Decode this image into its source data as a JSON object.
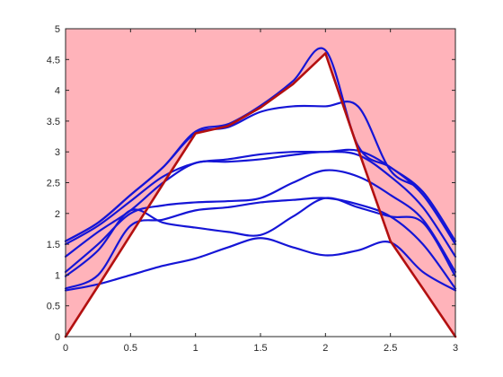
{
  "chart_data": {
    "type": "line",
    "title": "",
    "xlabel": "",
    "ylabel": "",
    "xlim": [
      0,
      3
    ],
    "ylim": [
      0,
      5
    ],
    "x_ticks": [
      0,
      0.5,
      1,
      1.5,
      2,
      2.5,
      3
    ],
    "x_tick_labels": [
      "0",
      "0.5",
      "1",
      "1.5",
      "2",
      "2.5",
      "3"
    ],
    "y_ticks": [
      0,
      0.5,
      1,
      1.5,
      2,
      2.5,
      3,
      3.5,
      4,
      4.5,
      5
    ],
    "y_tick_labels": [
      "0",
      "0.5",
      "1",
      "1.5",
      "2",
      "2.5",
      "3",
      "3.5",
      "4",
      "4.5",
      "5"
    ],
    "grid": false,
    "legend": "none",
    "colors": {
      "shaded_region": "#ffb3ba",
      "boundary": "#b31010",
      "bands": "#1515d6",
      "band_overlap": "#5a12b0"
    },
    "shaded_region": {
      "description": "Region above the boundary curve",
      "boundary_x": [
        0,
        0.25,
        0.5,
        0.75,
        1,
        1.25,
        1.5,
        1.75,
        2,
        2.25,
        2.5,
        2.75,
        3
      ],
      "boundary_y": [
        0,
        0.82,
        1.65,
        2.48,
        3.3,
        3.42,
        3.72,
        4.1,
        4.6,
        3.05,
        1.55,
        0.78,
        0
      ]
    },
    "series": [
      {
        "x": [
          0,
          0.25,
          0.5,
          0.75,
          1,
          1.25,
          1.5,
          1.75,
          2,
          2.25,
          2.5,
          2.75,
          3
        ],
        "y": [
          0.75,
          0.85,
          1.0,
          1.15,
          1.27,
          1.45,
          1.6,
          1.45,
          1.32,
          1.4,
          1.53,
          1.05,
          0.75
        ]
      },
      {
        "x": [
          0,
          0.25,
          0.5,
          0.75,
          1,
          1.25,
          1.5,
          1.75,
          2,
          2.25,
          2.5,
          2.75,
          3
        ],
        "y": [
          0.78,
          1.0,
          1.8,
          1.9,
          2.05,
          2.1,
          2.18,
          2.22,
          2.25,
          2.15,
          1.95,
          1.5,
          0.78
        ]
      },
      {
        "x": [
          0,
          0.25,
          0.5,
          0.75,
          1,
          1.25,
          1.5,
          1.75,
          2,
          2.25,
          2.5,
          2.75,
          3
        ],
        "y": [
          0.98,
          1.4,
          2.05,
          1.85,
          1.77,
          1.7,
          1.65,
          1.95,
          2.25,
          2.1,
          1.95,
          1.85,
          0.98
        ]
      },
      {
        "x": [
          0,
          0.25,
          0.5,
          0.75,
          1,
          1.25,
          1.5,
          1.75,
          2,
          2.25,
          2.5,
          2.75,
          3
        ],
        "y": [
          1.05,
          1.5,
          2.0,
          2.13,
          2.18,
          2.2,
          2.25,
          2.5,
          2.7,
          2.6,
          2.3,
          1.9,
          1.05
        ]
      },
      {
        "x": [
          0,
          0.25,
          0.5,
          0.75,
          1,
          1.25,
          1.5,
          1.75,
          2,
          2.25,
          2.5,
          2.75,
          3
        ],
        "y": [
          1.3,
          1.7,
          2.05,
          2.5,
          2.82,
          2.84,
          2.88,
          2.95,
          3.0,
          2.95,
          2.6,
          2.1,
          1.3
        ]
      },
      {
        "x": [
          0,
          0.25,
          0.5,
          0.75,
          1,
          1.25,
          1.5,
          1.75,
          2,
          2.25,
          2.5,
          2.75,
          3
        ],
        "y": [
          1.5,
          1.8,
          2.2,
          2.6,
          2.82,
          2.88,
          2.96,
          3.0,
          3.0,
          3.02,
          2.75,
          2.3,
          1.5
        ]
      },
      {
        "x": [
          0,
          0.25,
          0.5,
          0.75,
          1,
          1.25,
          1.5,
          1.75,
          2,
          2.25,
          2.5,
          2.75,
          3
        ],
        "y": [
          1.55,
          1.85,
          2.3,
          2.75,
          3.3,
          3.4,
          3.65,
          3.74,
          3.74,
          3.74,
          2.7,
          2.35,
          1.55
        ]
      },
      {
        "x": [
          0,
          0.25,
          0.5,
          0.75,
          1,
          1.25,
          1.5,
          1.75,
          2,
          2.25,
          2.5,
          2.75,
          3
        ],
        "y": [
          1.55,
          1.85,
          2.3,
          2.75,
          3.33,
          3.45,
          3.75,
          4.15,
          4.65,
          3.1,
          2.75,
          2.35,
          1.55
        ]
      }
    ]
  }
}
